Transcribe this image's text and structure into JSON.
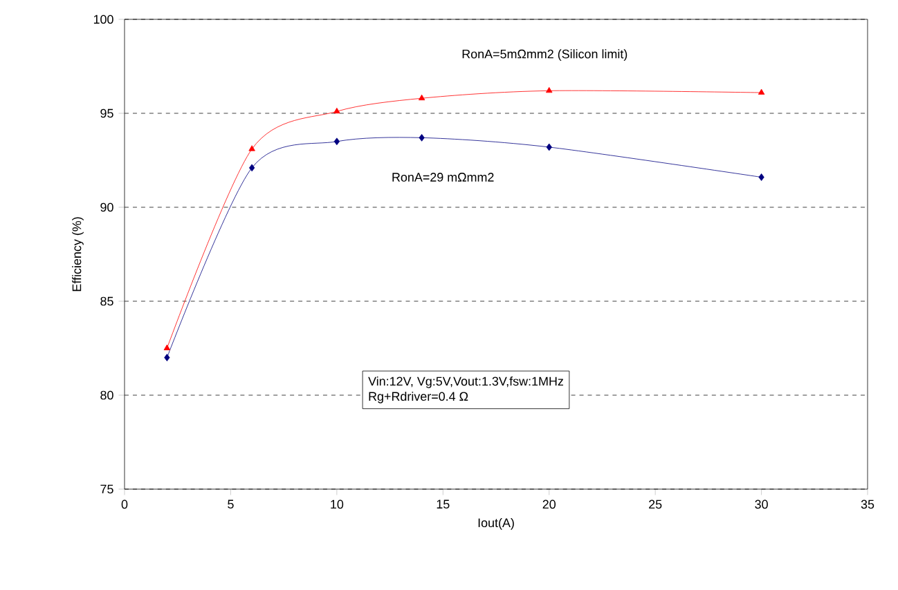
{
  "chart_data": {
    "type": "line",
    "xlabel": "Iout(A)",
    "ylabel": "Efficiency (%)",
    "x": [
      2,
      6,
      10,
      14,
      20,
      30
    ],
    "series": [
      {
        "name": "RonA=5mΩmm2 (Silicon limit)",
        "color": "#ff0000",
        "marker": "triangle",
        "values": [
          82.5,
          93.1,
          95.1,
          95.8,
          96.2,
          96.1
        ]
      },
      {
        "name": "RonA=29 mΩmm2",
        "color": "#000080",
        "marker": "diamond",
        "values": [
          82.0,
          92.1,
          93.5,
          93.7,
          93.2,
          91.6
        ]
      }
    ],
    "annotations": [
      "Vin:12V, Vg:5V,Vout:1.3V,fsw:1MHz",
      "Rg+Rdriver=0.4 Ω"
    ],
    "xlim": [
      0,
      35
    ],
    "xticks": [
      0,
      5,
      10,
      15,
      20,
      25,
      30,
      35
    ],
    "ylim": [
      75,
      100
    ],
    "yticks": [
      75,
      80,
      85,
      90,
      95,
      100
    ],
    "grid": "y",
    "line_style": "solid"
  }
}
